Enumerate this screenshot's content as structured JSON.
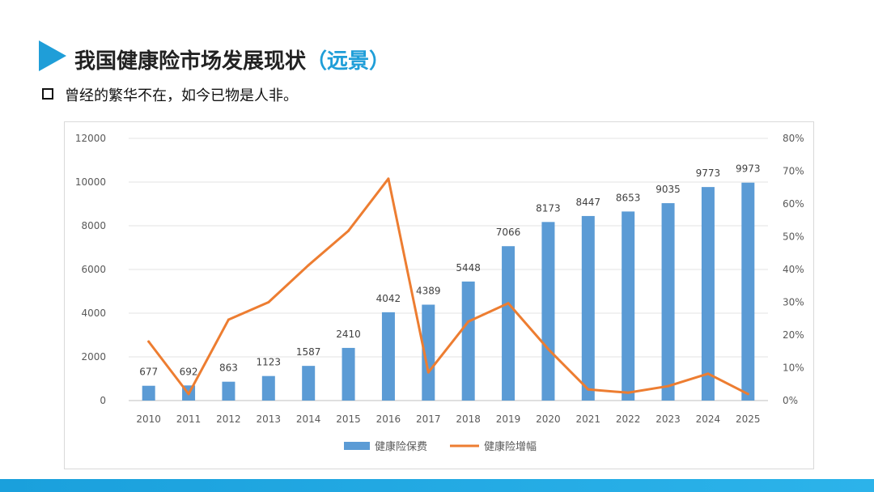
{
  "header": {
    "title_main": "我国健康险市场发展现状",
    "title_highlight": "（远景）",
    "subtitle": "曾经的繁华不在，如今已物是人非。"
  },
  "colors": {
    "accent": "#1f9ed8",
    "bar": "#5b9bd5",
    "line": "#ed7d31"
  },
  "chart_data": {
    "type": "bar",
    "categories": [
      "2010",
      "2011",
      "2012",
      "2013",
      "2014",
      "2015",
      "2016",
      "2017",
      "2018",
      "2019",
      "2020",
      "2021",
      "2022",
      "2023",
      "2024",
      "2025"
    ],
    "series": [
      {
        "name": "健康险保费",
        "type": "bar",
        "axis": "left",
        "values": [
          677,
          692,
          863,
          1123,
          1587,
          2410,
          4042,
          4389,
          5448,
          7066,
          8173,
          8447,
          8653,
          9035,
          9773,
          9973
        ]
      },
      {
        "name": "健康险增幅",
        "type": "line",
        "axis": "right",
        "values": [
          0.18,
          0.02,
          0.247,
          0.3,
          0.413,
          0.518,
          0.677,
          0.086,
          0.241,
          0.297,
          0.157,
          0.034,
          0.024,
          0.044,
          0.082,
          0.02
        ]
      }
    ],
    "ylim": [
      0,
      12000
    ],
    "yticks": [
      "0",
      "2000",
      "4000",
      "6000",
      "8000",
      "10000",
      "12000"
    ],
    "y2lim": [
      0,
      0.8
    ],
    "y2ticks": [
      "0%",
      "10%",
      "20%",
      "30%",
      "40%",
      "50%",
      "60%",
      "70%",
      "80%"
    ],
    "grid": true,
    "legend": "bottom"
  }
}
